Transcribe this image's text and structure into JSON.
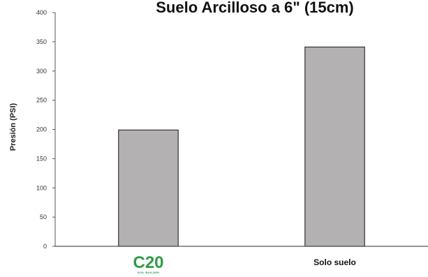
{
  "chart_data": {
    "type": "bar",
    "title": "Suelo Arcilloso a 6\" (15cm)",
    "ylabel": "Presión (PSI)",
    "xlabel": "",
    "ylim": [
      0,
      400
    ],
    "yticks": [
      0,
      50,
      100,
      150,
      200,
      250,
      300,
      350,
      400
    ],
    "categories": [
      "C20",
      "Solo suelo"
    ],
    "category_logo_sub": "SOIL BUILDER",
    "values": [
      199,
      341
    ],
    "grid": false,
    "bar_color": "#b3b1b1",
    "bar_edge_color": "#333333",
    "logo_color": "#2f9a47"
  }
}
